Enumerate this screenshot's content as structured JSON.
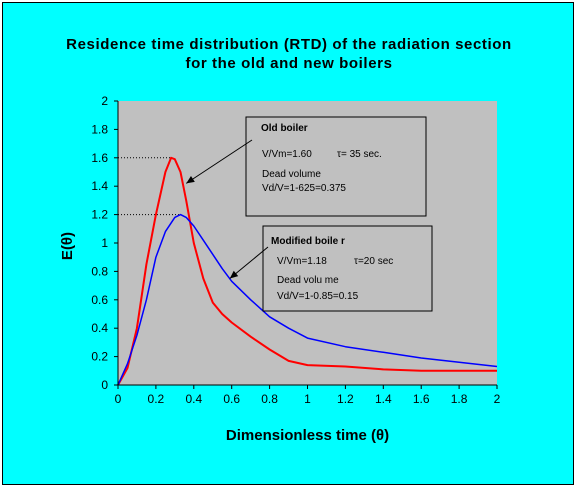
{
  "chart_data": {
    "type": "line",
    "title_line1": "Residence time distribution  (RTD) of the radiation section",
    "title_line2": "for the old and new boilers",
    "xlabel": "Dimensionless time (θ)",
    "ylabel": "E(θ)",
    "xlim": [
      0,
      2
    ],
    "ylim": [
      0,
      2
    ],
    "x_ticks": [
      "0",
      "0.2",
      "0.4",
      "0.6",
      "0.8",
      "1",
      "1.2",
      "1.4",
      "1.6",
      "1.8",
      "2"
    ],
    "y_ticks": [
      "0",
      "0.2",
      "0.4",
      "0.6",
      "0.8",
      "1",
      "1.2",
      "1.4",
      "1.6",
      "1.8",
      "2"
    ],
    "grid": false,
    "series": [
      {
        "key": "old",
        "color": "#ff0000",
        "points": [
          [
            0,
            0
          ],
          [
            0.05,
            0.12
          ],
          [
            0.1,
            0.4
          ],
          [
            0.15,
            0.85
          ],
          [
            0.2,
            1.2
          ],
          [
            0.25,
            1.5
          ],
          [
            0.28,
            1.6
          ],
          [
            0.3,
            1.59
          ],
          [
            0.33,
            1.5
          ],
          [
            0.36,
            1.3
          ],
          [
            0.4,
            1.0
          ],
          [
            0.45,
            0.75
          ],
          [
            0.5,
            0.58
          ],
          [
            0.55,
            0.5
          ],
          [
            0.6,
            0.44
          ],
          [
            0.7,
            0.34
          ],
          [
            0.8,
            0.25
          ],
          [
            0.9,
            0.17
          ],
          [
            1.0,
            0.14
          ],
          [
            1.2,
            0.13
          ],
          [
            1.4,
            0.11
          ],
          [
            1.6,
            0.1
          ],
          [
            1.8,
            0.1
          ],
          [
            2.0,
            0.1
          ]
        ]
      },
      {
        "key": "modified",
        "color": "#0000ff",
        "points": [
          [
            0,
            0
          ],
          [
            0.05,
            0.15
          ],
          [
            0.1,
            0.35
          ],
          [
            0.15,
            0.6
          ],
          [
            0.2,
            0.9
          ],
          [
            0.25,
            1.08
          ],
          [
            0.3,
            1.18
          ],
          [
            0.33,
            1.2
          ],
          [
            0.36,
            1.18
          ],
          [
            0.4,
            1.12
          ],
          [
            0.45,
            1.02
          ],
          [
            0.5,
            0.92
          ],
          [
            0.55,
            0.82
          ],
          [
            0.6,
            0.73
          ],
          [
            0.7,
            0.6
          ],
          [
            0.8,
            0.48
          ],
          [
            0.9,
            0.4
          ],
          [
            1.0,
            0.33
          ],
          [
            1.2,
            0.27
          ],
          [
            1.4,
            0.23
          ],
          [
            1.6,
            0.19
          ],
          [
            1.8,
            0.16
          ],
          [
            2.0,
            0.13
          ]
        ]
      }
    ],
    "reference_lines": [
      {
        "y": 1.6,
        "x_end": 0.28
      },
      {
        "y": 1.2,
        "x_end": 0.33
      }
    ],
    "annotations": {
      "old": {
        "heading": "Old boiler",
        "line1a": "V/Vm=1.60",
        "line1b": "τ= 35 sec.",
        "line2": "Dead volume",
        "line3": "Vd/V=1-625=0.375",
        "arrow_to": [
          0.36,
          1.42
        ]
      },
      "modified": {
        "heading": "Modified boile r",
        "line1a": "V/Vm=1.18",
        "line1b": "τ=20 sec",
        "line2": "Dead volu me",
        "line3": "Vd/V=1-0.85=0.15",
        "arrow_to": [
          0.59,
          0.75
        ]
      }
    }
  }
}
